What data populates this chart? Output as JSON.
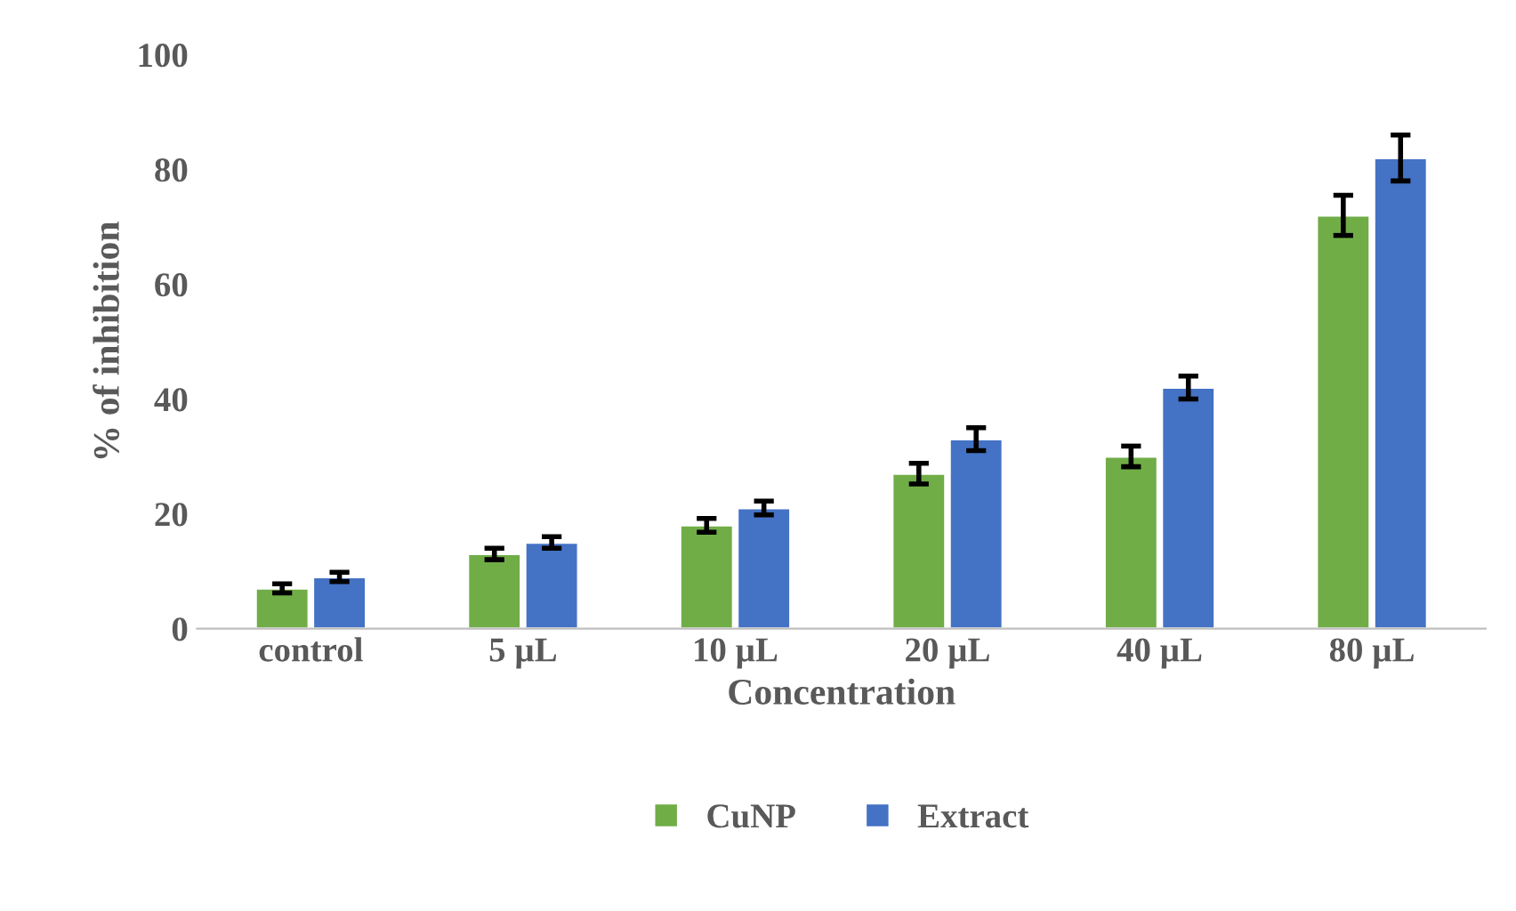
{
  "chart_data": {
    "type": "bar",
    "xlabel": "Concentration",
    "ylabel": "% of inhibition",
    "categories": [
      "control",
      "5 µL",
      "10 µL",
      "20 µL",
      "40 µL",
      "80 µL"
    ],
    "series": [
      {
        "name": "CuNP",
        "color": "#70ad47",
        "values": [
          7,
          13,
          18,
          27,
          30,
          72
        ],
        "errors": [
          0.8,
          1,
          1.2,
          1.8,
          1.8,
          3.5
        ]
      },
      {
        "name": "Extract",
        "color": "#4472c4",
        "values": [
          9,
          15,
          21,
          33,
          42,
          82
        ],
        "errors": [
          0.8,
          1,
          1.2,
          2,
          2,
          4
        ]
      }
    ],
    "ylim": [
      0,
      100
    ],
    "yticks": [
      0,
      20,
      40,
      60,
      80,
      100
    ],
    "grid": false,
    "legend": "bottom"
  }
}
